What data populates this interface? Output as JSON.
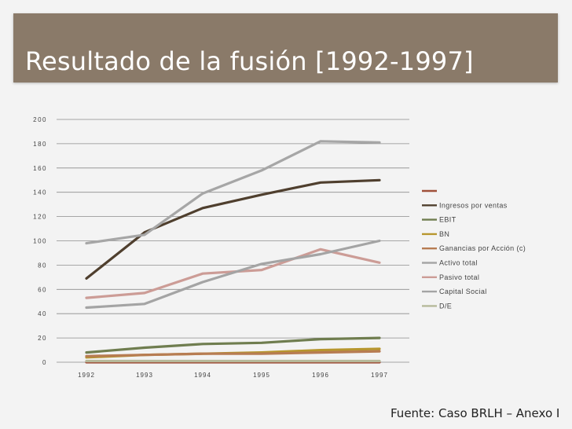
{
  "slide": {
    "title": "Resultado de la fusión [1992-1997]",
    "source": "Fuente: Caso BRLH – Anexo I"
  },
  "chart_data": {
    "type": "line",
    "categories": [
      "1992",
      "1993",
      "1994",
      "1995",
      "1996",
      "1997"
    ],
    "ylim": [
      0,
      200
    ],
    "yticks": [
      0,
      20,
      40,
      60,
      80,
      100,
      120,
      140,
      160,
      180,
      200
    ],
    "grid": true,
    "legend_position": "right",
    "series": [
      {
        "name": "",
        "color": "#a0503a",
        "values": [
          0,
          0,
          0,
          0,
          0,
          0
        ]
      },
      {
        "name": "Ingresos por ventas",
        "color": "#4f3f2e",
        "values": [
          69,
          107,
          127,
          138,
          148,
          150
        ]
      },
      {
        "name": "EBIT",
        "color": "#6f7d4f",
        "values": [
          8,
          12,
          15,
          16,
          19,
          20
        ]
      },
      {
        "name": "BN",
        "color": "#b7962e",
        "values": [
          4,
          6,
          7,
          8,
          10,
          11
        ]
      },
      {
        "name": "Ganancias por Acción (c)",
        "color": "#b77c52",
        "values": [
          5,
          6,
          7,
          7,
          8,
          9
        ]
      },
      {
        "name": "Activo total",
        "color": "#a6a6a6",
        "values": [
          98,
          105,
          139,
          158,
          182,
          181
        ]
      },
      {
        "name": "Pasivo total",
        "color": "#cc9c96",
        "values": [
          53,
          57,
          73,
          76,
          93,
          82
        ]
      },
      {
        "name": "Capital Social",
        "color": "#a4a4a4",
        "values": [
          45,
          48,
          66,
          81,
          89,
          100
        ]
      },
      {
        "name": "D/E",
        "color": "#b6b99a",
        "values": [
          1,
          1,
          1,
          1,
          1,
          1
        ]
      }
    ]
  }
}
